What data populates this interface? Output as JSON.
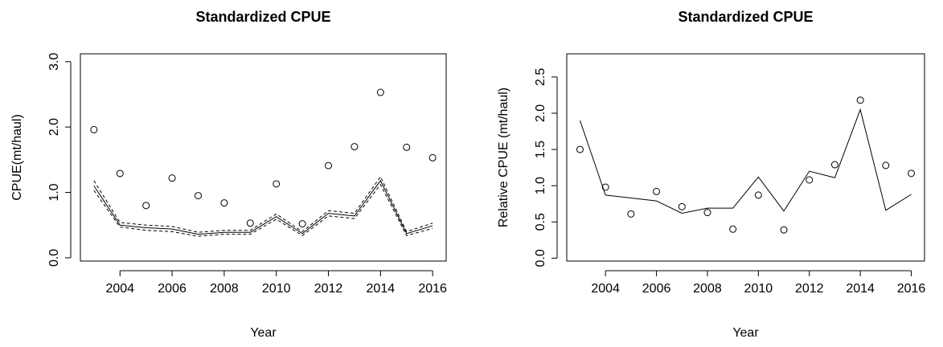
{
  "chart_data": [
    {
      "type": "line",
      "title": "Standardized CPUE",
      "xlabel": "Year",
      "ylabel": "CPUE(mt/haul)",
      "x": [
        2003,
        2004,
        2005,
        2006,
        2007,
        2008,
        2009,
        2010,
        2011,
        2012,
        2013,
        2014,
        2015,
        2016
      ],
      "xlim": [
        2002.48,
        2016.52
      ],
      "xticks": [
        2004,
        2006,
        2008,
        2010,
        2012,
        2014,
        2016
      ],
      "ylim": [
        -0.05,
        3.12
      ],
      "yticks": [
        {
          "value": 0,
          "label": "0.0"
        },
        {
          "value": 1,
          "label": "1.0"
        },
        {
          "value": 2,
          "label": "2.0"
        },
        {
          "value": 3,
          "label": "3.0"
        }
      ],
      "series": [
        {
          "color": "#000000",
          "style": "points",
          "values": [
            1.96,
            1.29,
            0.8,
            1.22,
            0.95,
            0.84,
            0.53,
            1.13,
            0.52,
            1.41,
            1.7,
            2.53,
            1.69,
            1.53
          ]
        },
        {
          "color": "#000000",
          "style": "line",
          "values": [
            1.1,
            0.5,
            0.46,
            0.44,
            0.36,
            0.39,
            0.39,
            0.63,
            0.37,
            0.68,
            0.64,
            1.18,
            0.37,
            0.49
          ]
        },
        {
          "color": "#000000",
          "style": "dashed",
          "values": [
            1.18,
            0.54,
            0.5,
            0.48,
            0.39,
            0.42,
            0.42,
            0.67,
            0.4,
            0.72,
            0.68,
            1.24,
            0.4,
            0.53
          ]
        },
        {
          "color": "#000000",
          "style": "dashed",
          "values": [
            1.03,
            0.47,
            0.42,
            0.4,
            0.33,
            0.36,
            0.36,
            0.59,
            0.34,
            0.64,
            0.6,
            1.12,
            0.34,
            0.45
          ]
        }
      ]
    },
    {
      "type": "line",
      "title": "Standardized CPUE",
      "xlabel": "Year",
      "ylabel": "Relative CPUE (mt/haul)",
      "x": [
        2003,
        2004,
        2005,
        2006,
        2007,
        2008,
        2009,
        2010,
        2011,
        2012,
        2013,
        2014,
        2015,
        2016
      ],
      "xlim": [
        2002.48,
        2016.52
      ],
      "xticks": [
        2004,
        2006,
        2008,
        2010,
        2012,
        2014,
        2016
      ],
      "ylim": [
        -0.04,
        2.82
      ],
      "yticks": [
        {
          "value": 0,
          "label": "0.0"
        },
        0.5,
        {
          "value": 1,
          "label": "1.0"
        },
        1.5,
        {
          "value": 2,
          "label": "2.0"
        },
        2.5
      ],
      "series": [
        {
          "color": "#000000",
          "style": "points",
          "values": [
            1.5,
            0.98,
            0.61,
            0.92,
            0.71,
            0.63,
            0.4,
            0.87,
            0.39,
            1.08,
            1.29,
            2.18,
            1.28,
            1.17
          ]
        },
        {
          "color": "#000000",
          "style": "line",
          "values": [
            1.9,
            0.87,
            0.83,
            0.79,
            0.62,
            0.69,
            0.69,
            1.12,
            0.65,
            1.2,
            1.11,
            2.05,
            0.66,
            0.88
          ]
        }
      ]
    }
  ]
}
